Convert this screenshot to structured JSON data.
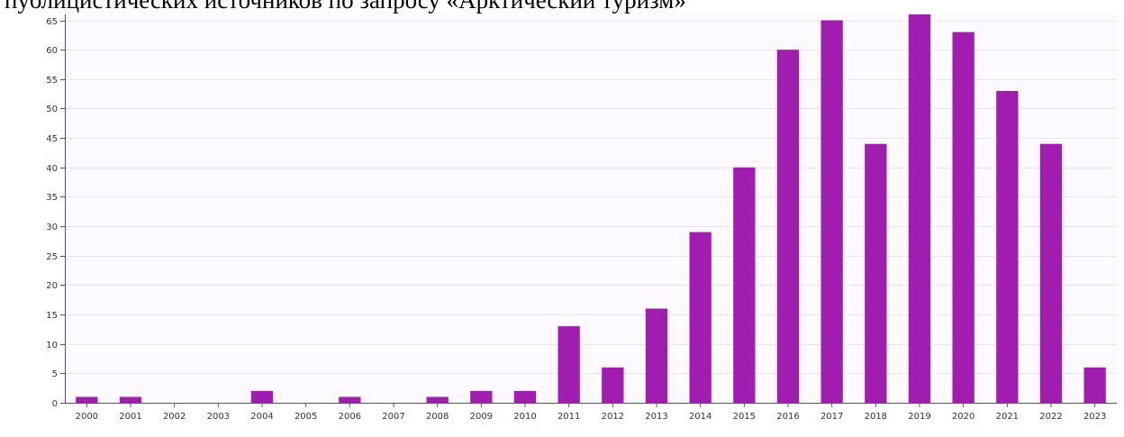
{
  "caption": "публицистических источников по запросу «Арктический туризм»",
  "colors": {
    "bar": "#a01db0",
    "plot_background": "#fcf9ff",
    "grid": "#e8e4ee",
    "axis": "#555555",
    "tick_text": "#333333"
  },
  "chart_data": {
    "type": "bar",
    "title": "",
    "xlabel": "",
    "ylabel": "",
    "categories": [
      "2000",
      "2001",
      "2002",
      "2003",
      "2004",
      "2005",
      "2006",
      "2007",
      "2008",
      "2009",
      "2010",
      "2011",
      "2012",
      "2013",
      "2014",
      "2015",
      "2016",
      "2017",
      "2018",
      "2019",
      "2020",
      "2021",
      "2022",
      "2023"
    ],
    "values": [
      1,
      1,
      0,
      0,
      2,
      0,
      1,
      0,
      1,
      2,
      2,
      13,
      6,
      16,
      29,
      40,
      60,
      65,
      44,
      66,
      63,
      53,
      44,
      6
    ],
    "ylim": [
      0,
      66
    ],
    "yticks": [
      0,
      5,
      10,
      15,
      20,
      25,
      30,
      35,
      40,
      45,
      50,
      55,
      60,
      65
    ],
    "grid": true,
    "legend": "none"
  }
}
